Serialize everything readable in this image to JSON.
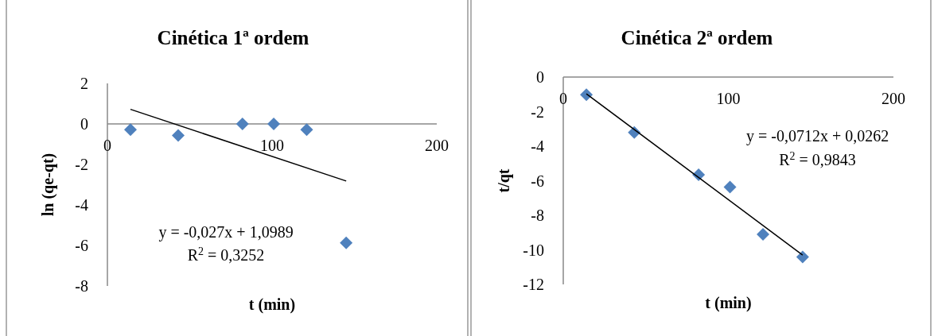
{
  "chart_data": [
    {
      "type": "scatter",
      "title": "Cinética 1ª ordem",
      "xlabel": "t (min)",
      "ylabel": "ln (qe-qt)",
      "xlim": [
        0,
        200
      ],
      "xticks": [
        0,
        100,
        200
      ],
      "ylim": [
        -8,
        2
      ],
      "yticks": [
        -8,
        -6,
        -4,
        -2,
        0,
        2
      ],
      "grid": false,
      "marker": "diamond",
      "series": [
        {
          "color": "#4f81bd",
          "x": [
            14,
            43,
            82,
            101,
            121,
            145
          ],
          "values": [
            -0.28,
            -0.57,
            0,
            0,
            -0.28,
            -5.87
          ]
        },
        {
          "type": "line",
          "color": "#000000",
          "marker": "none",
          "line_style": "solid",
          "x": [
            14,
            145
          ],
          "values": [
            0.72,
            -2.82
          ]
        }
      ],
      "annotations": [
        "y = -0,027x + 1,0989",
        "R$^{2}$ = 0,3252"
      ]
    },
    {
      "type": "scatter",
      "title": "Cinética 2ª ordem",
      "xlabel": "t (min)",
      "ylabel": "t/qt",
      "xlim": [
        0,
        200
      ],
      "xticks": [
        0,
        100,
        200
      ],
      "ylim": [
        -12,
        0
      ],
      "yticks": [
        -12,
        -10,
        -8,
        -6,
        -4,
        -2,
        0
      ],
      "grid": false,
      "marker": "diamond",
      "series": [
        {
          "color": "#4f81bd",
          "x": [
            14,
            43,
            82,
            101,
            121,
            145
          ],
          "values": [
            -1.02,
            -3.21,
            -5.65,
            -6.37,
            -9.1,
            -10.41
          ]
        },
        {
          "type": "line",
          "color": "#000000",
          "marker": "none",
          "line_style": "solid",
          "x": [
            14,
            145
          ],
          "values": [
            -0.97,
            -10.3
          ]
        }
      ],
      "annotations": [
        "y = -0,0712x + 0,0262",
        "R$^{2}$ = 0,9843"
      ]
    }
  ]
}
